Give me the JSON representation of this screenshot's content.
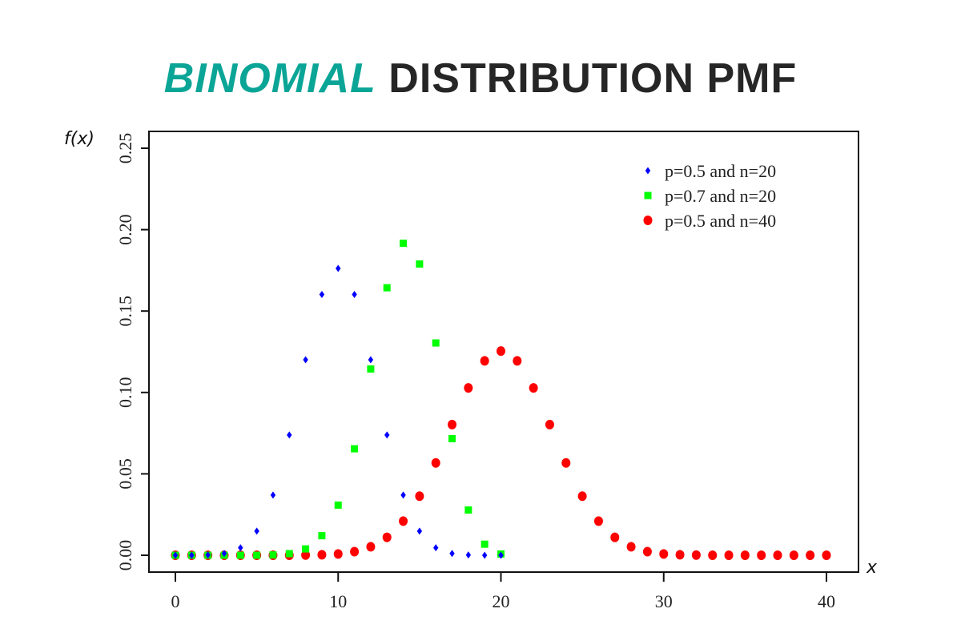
{
  "chart_data": {
    "type": "scatter",
    "title_part1": "Binomial",
    "title_part2": "Distribution PMF",
    "xlabel": "x",
    "ylabel": "f(x)",
    "xlim": [
      0,
      40
    ],
    "ylim": [
      0,
      0.25
    ],
    "x_ticks": [
      "0",
      "10",
      "20",
      "30",
      "40"
    ],
    "y_ticks": [
      "0.00",
      "0.05",
      "0.10",
      "0.15",
      "0.20",
      "0.25"
    ],
    "grid": false,
    "legend_position": "top-right",
    "series": [
      {
        "name": "p=0.5 and n=20",
        "color": "#0000ff",
        "marker": "diamond",
        "x": [
          0,
          1,
          2,
          3,
          4,
          5,
          6,
          7,
          8,
          9,
          10,
          11,
          12,
          13,
          14,
          15,
          16,
          17,
          18,
          19,
          20
        ],
        "y": [
          0.0,
          0.0,
          0.0002,
          0.0011,
          0.0046,
          0.0148,
          0.037,
          0.0739,
          0.1201,
          0.1602,
          0.1762,
          0.1602,
          0.1201,
          0.0739,
          0.037,
          0.0148,
          0.0046,
          0.0011,
          0.0002,
          0.0,
          0.0
        ]
      },
      {
        "name": "p=0.7 and n=20",
        "color": "#00ff00",
        "marker": "square",
        "x": [
          0,
          1,
          2,
          3,
          4,
          5,
          6,
          7,
          8,
          9,
          10,
          11,
          12,
          13,
          14,
          15,
          16,
          17,
          18,
          19,
          20
        ],
        "y": [
          0.0,
          0.0,
          0.0,
          0.0,
          0.0,
          0.0,
          0.0002,
          0.001,
          0.0039,
          0.012,
          0.0308,
          0.0654,
          0.1144,
          0.1643,
          0.1916,
          0.1789,
          0.1304,
          0.0716,
          0.0278,
          0.0068,
          0.0008
        ]
      },
      {
        "name": "p=0.5 and n=40",
        "color": "#ff0000",
        "marker": "circle",
        "x": [
          0,
          1,
          2,
          3,
          4,
          5,
          6,
          7,
          8,
          9,
          10,
          11,
          12,
          13,
          14,
          15,
          16,
          17,
          18,
          19,
          20,
          21,
          22,
          23,
          24,
          25,
          26,
          27,
          28,
          29,
          30,
          31,
          32,
          33,
          34,
          35,
          36,
          37,
          38,
          39,
          40
        ],
        "y": [
          0.0,
          0.0,
          0.0,
          0.0,
          0.0,
          0.0,
          0.0,
          0.0,
          0.0001,
          0.0003,
          0.0008,
          0.0022,
          0.0052,
          0.011,
          0.021,
          0.0363,
          0.0567,
          0.0803,
          0.1028,
          0.1194,
          0.1254,
          0.1194,
          0.1028,
          0.0803,
          0.0567,
          0.0363,
          0.021,
          0.011,
          0.0052,
          0.0022,
          0.0008,
          0.0003,
          0.0001,
          0.0,
          0.0,
          0.0,
          0.0,
          0.0,
          0.0,
          0.0,
          0.0
        ]
      }
    ]
  }
}
